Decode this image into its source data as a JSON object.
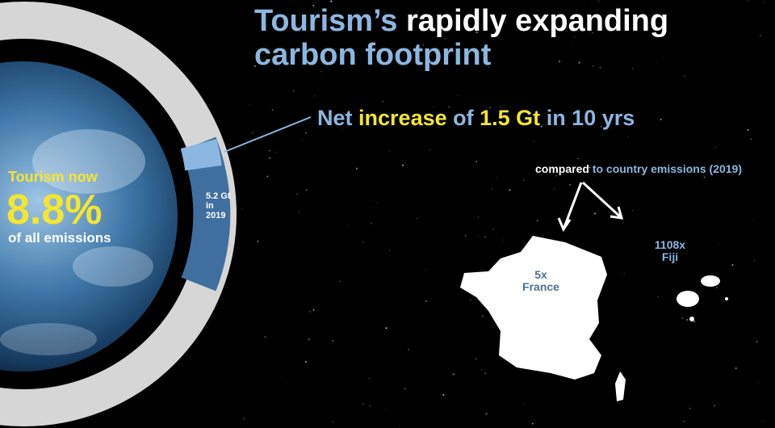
{
  "title": {
    "part1": "Tourism’s",
    "part2": "rapidly expanding",
    "part3": "carbon footprint"
  },
  "headline": {
    "p1": "Net",
    "p2": "increase",
    "p3": "of",
    "p4": "1.5 Gt",
    "p5": "in 10 yrs"
  },
  "share": {
    "line1": "Tourism now",
    "value": "8.8%",
    "line3": "of all emissions"
  },
  "ring_label": {
    "line1": "5.2 Gt",
    "line2": "in",
    "line3": "2019"
  },
  "comparison": {
    "lead": "compared",
    "rest": "to country emissions (2019)"
  },
  "countries": [
    {
      "multiple": "5x",
      "name": "France"
    },
    {
      "multiple": "1108x",
      "name": "Fiji"
    }
  ]
}
